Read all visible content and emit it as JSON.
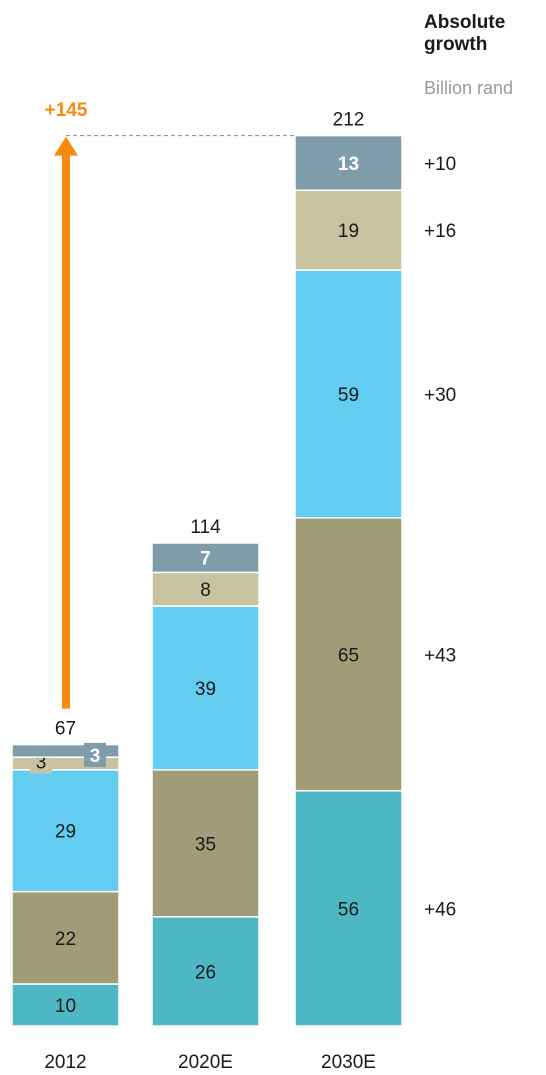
{
  "header": {
    "title": "Absolute growth",
    "unit": "Billion rand"
  },
  "growth_arrow": {
    "label": "+145",
    "color": "#f7890f"
  },
  "colors": {
    "teal": "#4db8c3",
    "olive": "#a09c78",
    "light_blue": "#62cdf1",
    "beige": "#c8c2a0",
    "slate": "#7f9cab"
  },
  "chart_data": {
    "type": "bar",
    "stacked": true,
    "categories": [
      "2012",
      "2020E",
      "2030E"
    ],
    "totals": [
      67,
      114,
      212
    ],
    "series": [
      {
        "color_key": "teal",
        "values": [
          10,
          26,
          56
        ],
        "growth": "+46"
      },
      {
        "color_key": "olive",
        "values": [
          22,
          35,
          65
        ],
        "growth": "+43"
      },
      {
        "color_key": "light_blue",
        "values": [
          29,
          39,
          59
        ],
        "growth": "+30"
      },
      {
        "color_key": "beige",
        "values": [
          3,
          8,
          19
        ],
        "growth": "+16"
      },
      {
        "color_key": "slate",
        "values": [
          3,
          7,
          13
        ],
        "growth": "+10"
      }
    ],
    "grid": false,
    "legend": "none"
  }
}
